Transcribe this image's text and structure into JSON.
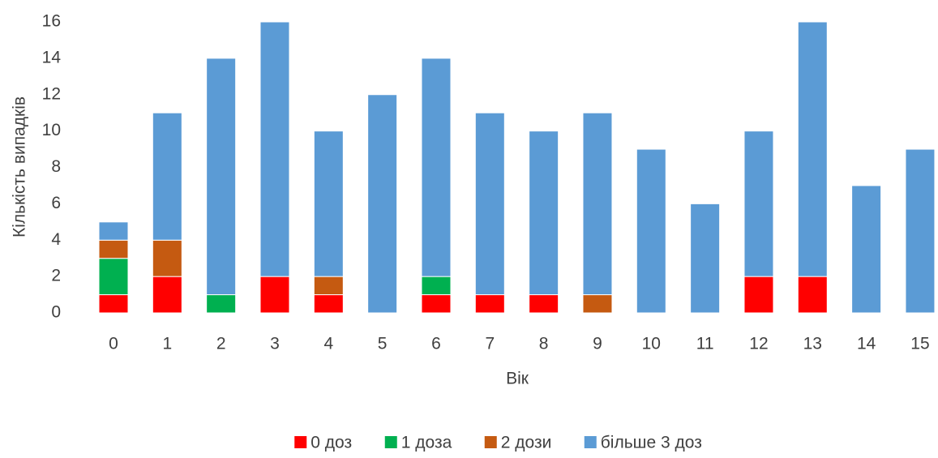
{
  "chart_data": {
    "type": "stacked_bar",
    "x_label": "Вік",
    "y_label": "Кількість  випадків",
    "categories": [
      "0",
      "1",
      "2",
      "3",
      "4",
      "5",
      "6",
      "7",
      "8",
      "9",
      "10",
      "11",
      "12",
      "13",
      "14",
      "15"
    ],
    "series": [
      {
        "name": "0 доз",
        "color": "#ff0000",
        "values": [
          1,
          2,
          0,
          2,
          1,
          0,
          1,
          1,
          1,
          0,
          0,
          0,
          2,
          2,
          0,
          0
        ]
      },
      {
        "name": "1 доза",
        "color": "#00b050",
        "values": [
          2,
          0,
          1,
          0,
          0,
          0,
          1,
          0,
          0,
          0,
          0,
          0,
          0,
          0,
          0,
          0
        ]
      },
      {
        "name": "2 дози",
        "color": "#c55a11",
        "values": [
          1,
          2,
          0,
          0,
          1,
          0,
          0,
          0,
          0,
          1,
          0,
          0,
          0,
          0,
          0,
          0
        ]
      },
      {
        "name": "більше 3 доз",
        "color": "#5b9bd5",
        "values": [
          1,
          7,
          13,
          14,
          8,
          12,
          12,
          10,
          9,
          10,
          9,
          6,
          8,
          14,
          7,
          9
        ]
      }
    ],
    "ylim": [
      0,
      16
    ],
    "yticks": [
      0,
      2,
      4,
      6,
      8,
      10,
      12,
      14,
      16
    ],
    "grid": false,
    "legend": "bottom"
  }
}
